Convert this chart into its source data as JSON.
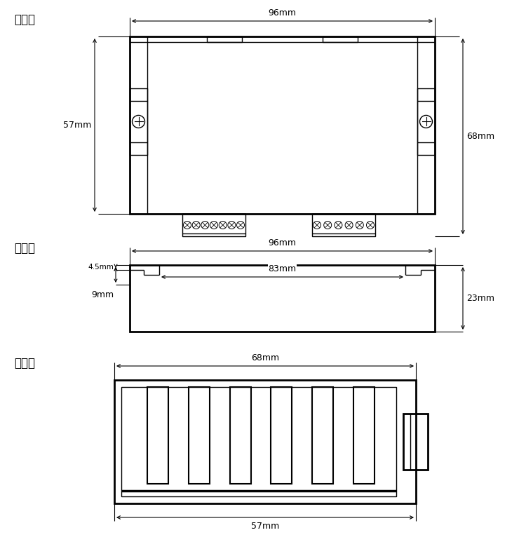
{
  "bg_color": "#ffffff",
  "line_color": "#000000",
  "fig_width": 7.5,
  "fig_height": 7.93,
  "top_view": {
    "label": "俯视图",
    "dim_96mm": "96mm",
    "dim_57mm": "57mm",
    "dim_68mm": "68mm"
  },
  "back_view": {
    "label": "背视图",
    "dim_96mm": "96mm",
    "dim_83mm": "83mm",
    "dim_45mm": "4.5mm",
    "dim_9mm": "9mm",
    "dim_23mm": "23mm"
  },
  "side_view": {
    "label": "侧视图",
    "dim_68mm": "68mm",
    "dim_57mm": "57mm"
  }
}
